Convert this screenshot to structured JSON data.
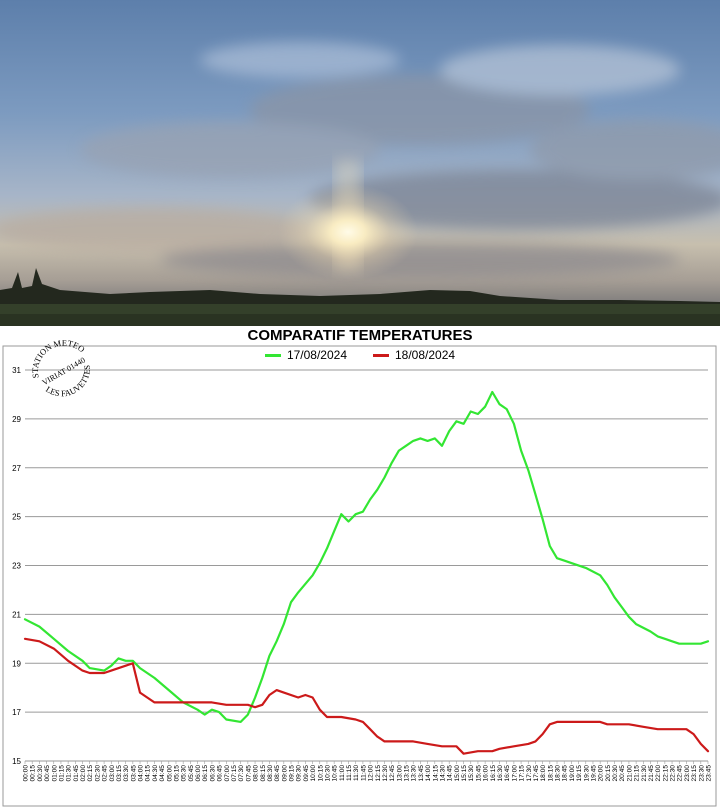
{
  "stamp": {
    "top": "STATION METEO",
    "middle": "VIRIAT 01440",
    "bottom": "LES FAUVETTES"
  },
  "chart_data": {
    "type": "line",
    "title": "COMPARATIF TEMPERATURES",
    "xlabel": "",
    "ylabel": "",
    "ylim": [
      15,
      31
    ],
    "yticks": [
      15,
      17,
      19,
      21,
      23,
      25,
      27,
      29,
      31
    ],
    "x_tick_labels": [
      "00:00",
      "00:15",
      "00:30",
      "00:45",
      "01:00",
      "01:15",
      "01:30",
      "01:45",
      "02:00",
      "02:15",
      "02:30",
      "02:45",
      "03:00",
      "03:15",
      "03:30",
      "03:45",
      "04:00",
      "04:15",
      "04:30",
      "04:45",
      "05:00",
      "05:15",
      "05:30",
      "05:45",
      "06:00",
      "06:15",
      "06:30",
      "06:45",
      "07:00",
      "07:15",
      "07:30",
      "07:45",
      "08:00",
      "08:15",
      "08:30",
      "08:45",
      "09:00",
      "09:15",
      "09:30",
      "09:45",
      "10:00",
      "10:15",
      "10:30",
      "10:45",
      "11:00",
      "11:15",
      "11:30",
      "11:45",
      "12:00",
      "12:15",
      "12:30",
      "12:45",
      "13:00",
      "13:15",
      "13:30",
      "13:45",
      "14:00",
      "14:15",
      "14:30",
      "14:45",
      "15:00",
      "15:15",
      "15:30",
      "15:45",
      "16:00",
      "16:15",
      "16:30",
      "16:45",
      "17:00",
      "17:15",
      "17:30",
      "17:45",
      "18:00",
      "18:15",
      "18:30",
      "18:45",
      "19:00",
      "19:15",
      "19:30",
      "19:45",
      "20:00",
      "20:15",
      "20:30",
      "20:45",
      "21:00",
      "21:15",
      "21:30",
      "21:45",
      "22:00",
      "22:15",
      "22:30",
      "22:45",
      "23:00",
      "23:15",
      "23:30",
      "23:45"
    ],
    "grid": true,
    "legend_position": "top-center",
    "series": [
      {
        "name": "17/08/2024",
        "color": "#33e633",
        "points": [
          [
            "00:00",
            20.8
          ],
          [
            "00:30",
            20.5
          ],
          [
            "01:00",
            20.0
          ],
          [
            "01:30",
            19.5
          ],
          [
            "02:00",
            19.1
          ],
          [
            "02:15",
            18.8
          ],
          [
            "02:45",
            18.7
          ],
          [
            "03:00",
            18.9
          ],
          [
            "03:15",
            19.2
          ],
          [
            "03:30",
            19.1
          ],
          [
            "03:45",
            19.1
          ],
          [
            "04:00",
            18.8
          ],
          [
            "04:30",
            18.4
          ],
          [
            "05:00",
            17.9
          ],
          [
            "05:30",
            17.4
          ],
          [
            "06:00",
            17.1
          ],
          [
            "06:15",
            16.9
          ],
          [
            "06:30",
            17.1
          ],
          [
            "06:45",
            17.0
          ],
          [
            "07:00",
            16.7
          ],
          [
            "07:30",
            16.6
          ],
          [
            "07:45",
            16.9
          ],
          [
            "08:00",
            17.6
          ],
          [
            "08:15",
            18.4
          ],
          [
            "08:30",
            19.3
          ],
          [
            "08:45",
            19.9
          ],
          [
            "09:00",
            20.6
          ],
          [
            "09:15",
            21.5
          ],
          [
            "09:30",
            21.9
          ],
          [
            "10:00",
            22.6
          ],
          [
            "10:15",
            23.1
          ],
          [
            "10:30",
            23.7
          ],
          [
            "10:45",
            24.4
          ],
          [
            "11:00",
            25.1
          ],
          [
            "11:15",
            24.8
          ],
          [
            "11:30",
            25.1
          ],
          [
            "11:45",
            25.2
          ],
          [
            "12:00",
            25.7
          ],
          [
            "12:15",
            26.1
          ],
          [
            "12:30",
            26.6
          ],
          [
            "12:45",
            27.2
          ],
          [
            "13:00",
            27.7
          ],
          [
            "13:15",
            27.9
          ],
          [
            "13:30",
            28.1
          ],
          [
            "13:45",
            28.2
          ],
          [
            "14:00",
            28.1
          ],
          [
            "14:15",
            28.2
          ],
          [
            "14:30",
            27.9
          ],
          [
            "14:45",
            28.5
          ],
          [
            "15:00",
            28.9
          ],
          [
            "15:15",
            28.8
          ],
          [
            "15:30",
            29.3
          ],
          [
            "15:45",
            29.2
          ],
          [
            "16:00",
            29.5
          ],
          [
            "16:15",
            30.1
          ],
          [
            "16:30",
            29.6
          ],
          [
            "16:45",
            29.4
          ],
          [
            "17:00",
            28.8
          ],
          [
            "17:15",
            27.7
          ],
          [
            "17:30",
            26.9
          ],
          [
            "17:45",
            25.9
          ],
          [
            "18:00",
            24.9
          ],
          [
            "18:15",
            23.8
          ],
          [
            "18:30",
            23.3
          ],
          [
            "18:45",
            23.2
          ],
          [
            "19:00",
            23.1
          ],
          [
            "19:30",
            22.9
          ],
          [
            "20:00",
            22.6
          ],
          [
            "20:15",
            22.2
          ],
          [
            "20:30",
            21.7
          ],
          [
            "20:45",
            21.3
          ],
          [
            "21:00",
            20.9
          ],
          [
            "21:15",
            20.6
          ],
          [
            "21:45",
            20.3
          ],
          [
            "22:00",
            20.1
          ],
          [
            "22:15",
            20.0
          ],
          [
            "22:30",
            19.9
          ],
          [
            "22:45",
            19.8
          ],
          [
            "23:30",
            19.8
          ],
          [
            "23:45",
            19.9
          ]
        ]
      },
      {
        "name": "18/08/2024",
        "color": "#cc1a1a",
        "points": [
          [
            "00:00",
            20.0
          ],
          [
            "00:30",
            19.9
          ],
          [
            "01:00",
            19.6
          ],
          [
            "01:30",
            19.1
          ],
          [
            "02:00",
            18.7
          ],
          [
            "02:15",
            18.6
          ],
          [
            "02:45",
            18.6
          ],
          [
            "03:00",
            18.7
          ],
          [
            "03:30",
            18.9
          ],
          [
            "03:45",
            19.0
          ],
          [
            "04:00",
            17.8
          ],
          [
            "04:15",
            17.6
          ],
          [
            "04:30",
            17.4
          ],
          [
            "05:00",
            17.4
          ],
          [
            "05:30",
            17.4
          ],
          [
            "06:00",
            17.4
          ],
          [
            "06:30",
            17.4
          ],
          [
            "07:00",
            17.3
          ],
          [
            "07:45",
            17.3
          ],
          [
            "08:00",
            17.2
          ],
          [
            "08:15",
            17.3
          ],
          [
            "08:30",
            17.7
          ],
          [
            "08:45",
            17.9
          ],
          [
            "09:00",
            17.8
          ],
          [
            "09:30",
            17.6
          ],
          [
            "09:45",
            17.7
          ],
          [
            "10:00",
            17.6
          ],
          [
            "10:15",
            17.1
          ],
          [
            "10:30",
            16.8
          ],
          [
            "11:00",
            16.8
          ],
          [
            "11:30",
            16.7
          ],
          [
            "11:45",
            16.6
          ],
          [
            "12:00",
            16.3
          ],
          [
            "12:15",
            16.0
          ],
          [
            "12:30",
            15.8
          ],
          [
            "13:00",
            15.8
          ],
          [
            "13:30",
            15.8
          ],
          [
            "14:00",
            15.7
          ],
          [
            "14:30",
            15.6
          ],
          [
            "15:00",
            15.6
          ],
          [
            "15:15",
            15.3
          ],
          [
            "15:45",
            15.4
          ],
          [
            "16:15",
            15.4
          ],
          [
            "16:30",
            15.5
          ],
          [
            "17:00",
            15.6
          ],
          [
            "17:30",
            15.7
          ],
          [
            "17:45",
            15.8
          ],
          [
            "18:00",
            16.1
          ],
          [
            "18:15",
            16.5
          ],
          [
            "18:30",
            16.6
          ],
          [
            "19:00",
            16.6
          ],
          [
            "19:30",
            16.6
          ],
          [
            "20:00",
            16.6
          ],
          [
            "20:15",
            16.5
          ],
          [
            "20:30",
            16.5
          ],
          [
            "21:00",
            16.5
          ],
          [
            "21:30",
            16.4
          ],
          [
            "22:00",
            16.3
          ],
          [
            "22:30",
            16.3
          ],
          [
            "23:00",
            16.3
          ],
          [
            "23:15",
            16.1
          ],
          [
            "23:30",
            15.7
          ],
          [
            "23:45",
            15.4
          ]
        ]
      }
    ]
  }
}
